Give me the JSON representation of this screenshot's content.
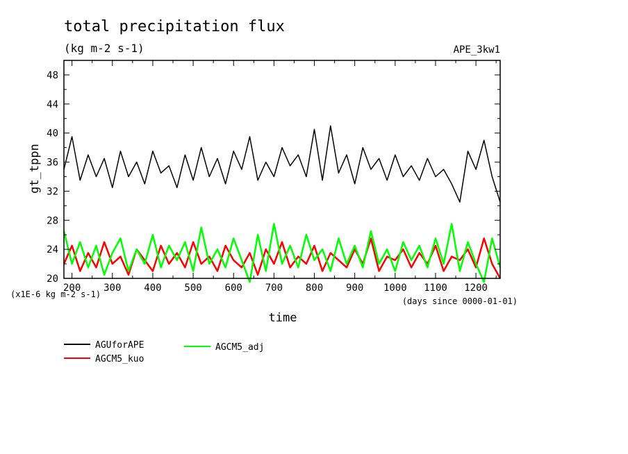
{
  "chart_data": {
    "type": "line",
    "title": "total precipitation flux",
    "subtitle": "(kg m-2 s-1)",
    "experiment": "APE_3kw1",
    "xlabel": "time",
    "x_unit_note": "(days since 0000-01-01)",
    "ylabel": "gt_tppn",
    "y_unit_note": "(x1E-6 kg m-2 s-1)",
    "xlim": [
      180,
      1260
    ],
    "ylim": [
      20,
      50
    ],
    "x_ticks": [
      200,
      300,
      400,
      500,
      600,
      700,
      800,
      900,
      1000,
      1100,
      1200
    ],
    "y_ticks": [
      20,
      24,
      28,
      32,
      36,
      40,
      44,
      48
    ],
    "grid": false,
    "legend_placement": "below plot",
    "series": [
      {
        "name": "AGUforAPE",
        "color": "#000000",
        "x": [
          180,
          200,
          220,
          240,
          260,
          280,
          300,
          320,
          340,
          360,
          380,
          400,
          420,
          440,
          460,
          480,
          500,
          520,
          540,
          560,
          580,
          600,
          620,
          640,
          660,
          680,
          700,
          720,
          740,
          760,
          780,
          800,
          820,
          840,
          860,
          880,
          900,
          920,
          940,
          960,
          980,
          1000,
          1020,
          1040,
          1060,
          1080,
          1100,
          1120,
          1140,
          1160,
          1180,
          1200,
          1220,
          1240,
          1260
        ],
        "values": [
          35.0,
          39.5,
          33.5,
          37.0,
          34.0,
          36.5,
          32.5,
          37.5,
          34.0,
          36.0,
          33.0,
          37.5,
          34.5,
          35.5,
          32.5,
          37.0,
          33.5,
          38.0,
          34.0,
          36.5,
          33.0,
          37.5,
          35.0,
          39.5,
          33.5,
          36.0,
          34.0,
          38.0,
          35.5,
          37.0,
          34.0,
          40.5,
          33.5,
          41.0,
          34.5,
          37.0,
          33.0,
          38.0,
          35.0,
          36.5,
          33.5,
          37.0,
          34.0,
          35.5,
          33.5,
          36.5,
          34.0,
          35.0,
          33.0,
          30.5,
          37.5,
          35.0,
          39.0,
          34.0,
          30.5
        ]
      },
      {
        "name": "AGCM5_kuo",
        "color": "#ff0000",
        "x": [
          180,
          200,
          220,
          240,
          260,
          280,
          300,
          320,
          340,
          360,
          380,
          400,
          420,
          440,
          460,
          480,
          500,
          520,
          540,
          560,
          580,
          600,
          620,
          640,
          660,
          680,
          700,
          720,
          740,
          760,
          780,
          800,
          820,
          840,
          860,
          880,
          900,
          920,
          940,
          960,
          980,
          1000,
          1020,
          1040,
          1060,
          1080,
          1100,
          1120,
          1140,
          1160,
          1180,
          1200,
          1220,
          1240,
          1260
        ],
        "values": [
          22.0,
          24.5,
          21.0,
          23.5,
          21.5,
          25.0,
          22.0,
          23.0,
          20.5,
          24.0,
          22.5,
          21.0,
          24.5,
          22.0,
          23.5,
          21.5,
          25.0,
          22.0,
          23.0,
          21.0,
          24.5,
          22.5,
          21.5,
          23.5,
          20.5,
          24.0,
          22.0,
          25.0,
          21.5,
          23.0,
          22.0,
          24.5,
          21.0,
          23.5,
          22.5,
          21.5,
          24.0,
          22.0,
          25.5,
          21.0,
          23.0,
          22.5,
          24.0,
          21.5,
          23.5,
          22.0,
          24.5,
          21.0,
          23.0,
          22.5,
          24.0,
          21.5,
          25.5,
          22.0,
          20.0
        ]
      },
      {
        "name": "AGCM5_adj",
        "color": "#00ff00",
        "x": [
          180,
          200,
          220,
          240,
          260,
          280,
          300,
          320,
          340,
          360,
          380,
          400,
          420,
          440,
          460,
          480,
          500,
          520,
          540,
          560,
          580,
          600,
          620,
          640,
          660,
          680,
          700,
          720,
          740,
          760,
          780,
          800,
          820,
          840,
          860,
          880,
          900,
          920,
          940,
          960,
          980,
          1000,
          1020,
          1040,
          1060,
          1080,
          1100,
          1120,
          1140,
          1160,
          1180,
          1200,
          1220,
          1240,
          1260
        ],
        "values": [
          26.5,
          22.0,
          25.0,
          21.5,
          24.5,
          20.5,
          23.5,
          25.5,
          21.0,
          24.0,
          22.0,
          26.0,
          21.5,
          24.5,
          22.5,
          25.0,
          21.0,
          27.0,
          22.0,
          24.0,
          21.5,
          25.5,
          22.5,
          19.5,
          26.0,
          21.0,
          27.5,
          22.0,
          24.5,
          21.5,
          26.0,
          22.5,
          24.0,
          21.0,
          25.5,
          22.0,
          24.5,
          21.5,
          26.5,
          22.0,
          24.0,
          21.0,
          25.0,
          22.5,
          24.5,
          21.5,
          25.5,
          22.0,
          27.5,
          21.0,
          25.0,
          22.0,
          19.5,
          25.5,
          21.5
        ]
      }
    ]
  }
}
